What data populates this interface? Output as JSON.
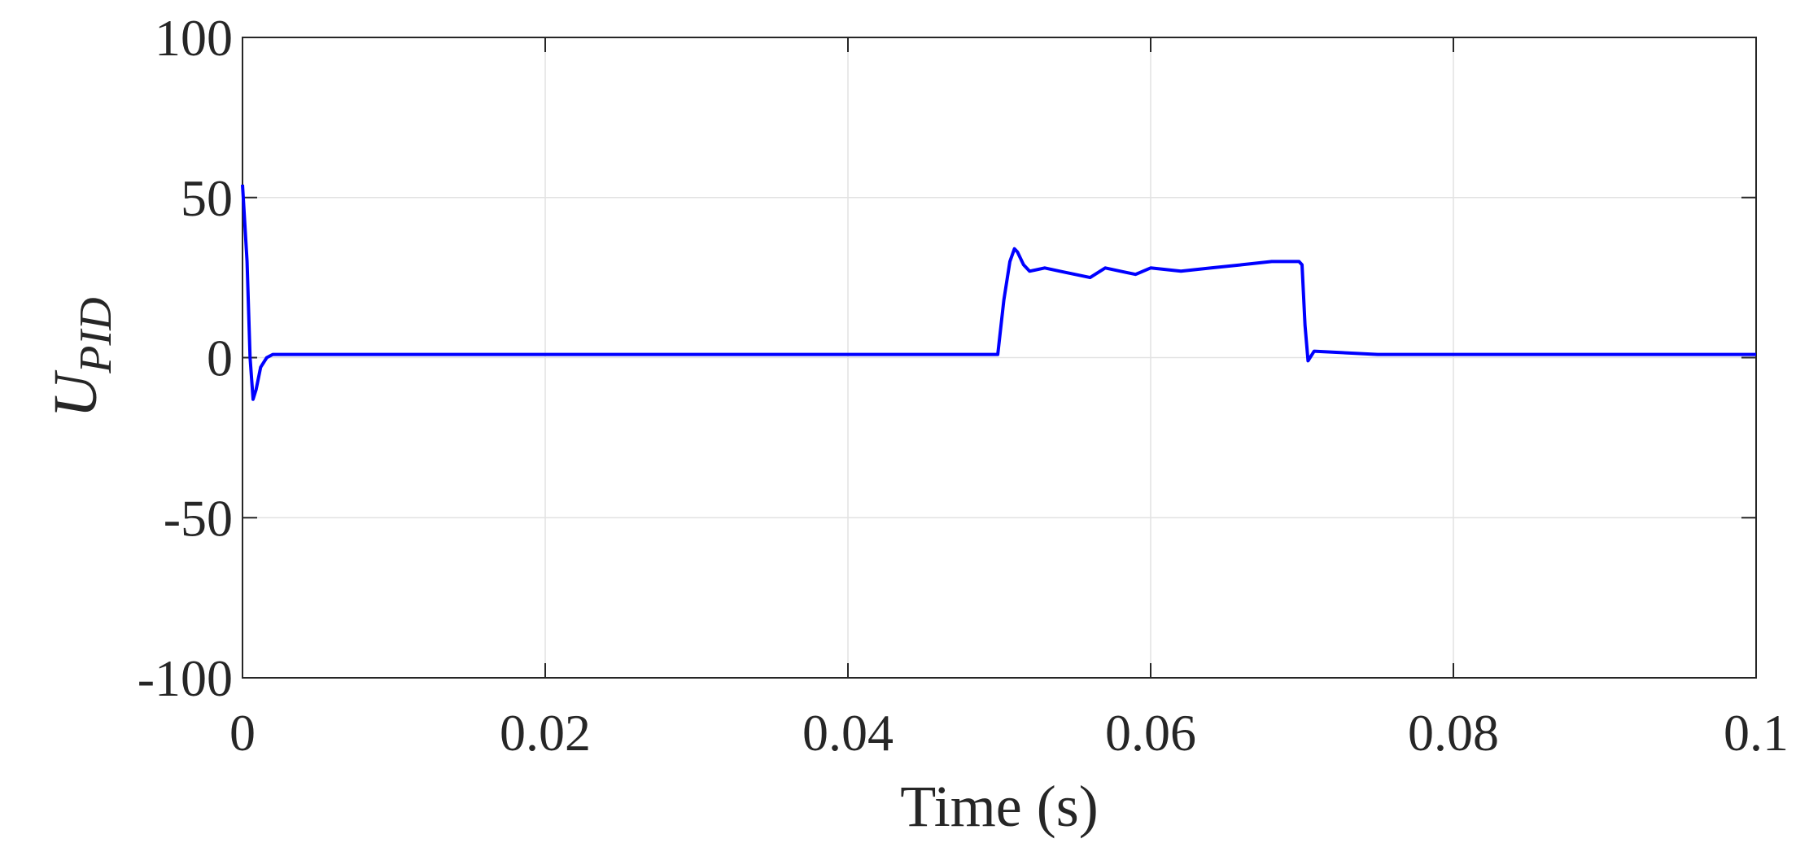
{
  "chart_data": {
    "type": "line",
    "xlabel": "Time (s)",
    "ylabel_main": "U",
    "ylabel_sub": "PID",
    "xlim": [
      0,
      0.1
    ],
    "ylim": [
      -100,
      100
    ],
    "xticks": [
      0,
      0.02,
      0.04,
      0.06,
      0.08,
      0.1
    ],
    "xtick_labels": [
      "0",
      "0.02",
      "0.04",
      "0.06",
      "0.08",
      "0.1"
    ],
    "yticks": [
      -100,
      -50,
      0,
      50,
      100
    ],
    "ytick_labels": [
      "-100",
      "-50",
      "0",
      "50",
      "100"
    ],
    "grid": true,
    "line_color": "#0000ff",
    "series": [
      {
        "x": [
          0,
          0.0003,
          0.0005,
          0.0007,
          0.0009,
          0.0012,
          0.0016,
          0.002,
          0.005,
          0.01,
          0.02,
          0.03,
          0.04,
          0.0499,
          0.0503,
          0.0507,
          0.051,
          0.0512,
          0.0516,
          0.052,
          0.053,
          0.054,
          0.055,
          0.056,
          0.057,
          0.058,
          0.059,
          0.06,
          0.062,
          0.064,
          0.066,
          0.068,
          0.0698,
          0.07,
          0.0702,
          0.0704,
          0.0708,
          0.075,
          0.08,
          0.09,
          0.1
        ],
        "y": [
          54,
          30,
          0,
          -13,
          -10,
          -3,
          0,
          1,
          1,
          1,
          1,
          1,
          1,
          1,
          18,
          30,
          34,
          33,
          29,
          27,
          28,
          27,
          26,
          25,
          28,
          27,
          26,
          28,
          27,
          28,
          29,
          30,
          30,
          29,
          10,
          -1,
          2,
          1,
          1,
          1,
          1
        ]
      }
    ]
  }
}
